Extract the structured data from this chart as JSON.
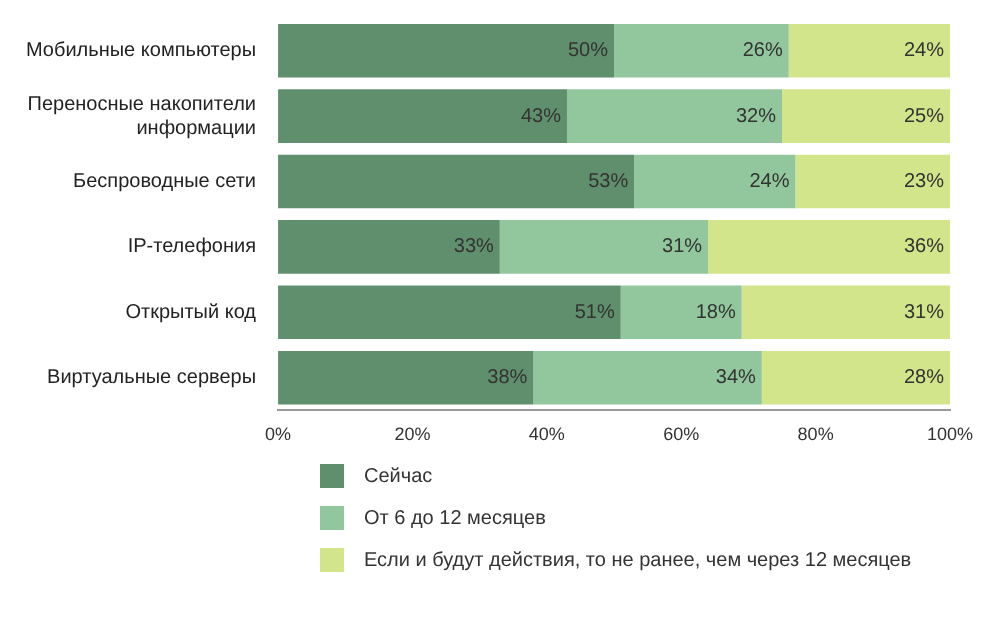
{
  "chart_data": {
    "type": "bar",
    "orientation": "horizontal",
    "stacked": true,
    "categories": [
      "Мобильные компьютеры",
      "Переносные накопители информации",
      "Беспроводные сети",
      "IP-телефония",
      "Открытый код",
      "Виртуальные серверы"
    ],
    "series": [
      {
        "name": "Сейчас",
        "color": "#5f8f6c",
        "values": [
          50,
          43,
          53,
          33,
          51,
          38
        ],
        "value_labels": [
          "50%",
          "43%",
          "53%",
          "33%",
          "51%",
          "38%"
        ]
      },
      {
        "name": "От 6 до 12 месяцев",
        "color": "#92c79e",
        "values": [
          26,
          32,
          24,
          31,
          18,
          34
        ],
        "value_labels": [
          "26%",
          "32%",
          "24%",
          "31%",
          "18%",
          "34%"
        ]
      },
      {
        "name": "Если и будут действия, то не ранее, чем через 12 месяцев",
        "color": "#d3e58a",
        "values": [
          24,
          25,
          23,
          36,
          31,
          28
        ],
        "value_labels": [
          "24%",
          "25%",
          "23%",
          "36%",
          "31%",
          "28%"
        ]
      }
    ],
    "xlim": [
      0,
      100
    ],
    "xticks": [
      {
        "value": 0,
        "label": "0%"
      },
      {
        "value": 20,
        "label": "20%"
      },
      {
        "value": 40,
        "label": "40%"
      },
      {
        "value": 60,
        "label": "60%"
      },
      {
        "value": 80,
        "label": "80%"
      },
      {
        "value": 100,
        "label": "100%"
      }
    ],
    "grid": false,
    "legend": "bottom left"
  }
}
